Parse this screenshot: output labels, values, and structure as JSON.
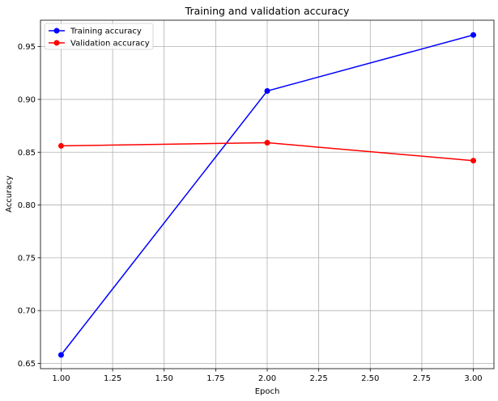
{
  "chart_data": {
    "type": "line",
    "title": "Training and validation accuracy",
    "xlabel": "Epoch",
    "ylabel": "Accuracy",
    "xlim": [
      0.9,
      3.1
    ],
    "ylim": [
      0.645,
      0.975
    ],
    "grid": true,
    "legend_position": "top-left",
    "x": [
      1.0,
      2.0,
      3.0
    ],
    "xticks": [
      1.0,
      1.25,
      1.5,
      1.75,
      2.0,
      2.25,
      2.5,
      2.75,
      3.0
    ],
    "xtick_labels": [
      "1.00",
      "1.25",
      "1.50",
      "1.75",
      "2.00",
      "2.25",
      "2.50",
      "2.75",
      "3.00"
    ],
    "yticks": [
      0.65,
      0.7,
      0.75,
      0.8,
      0.85,
      0.9,
      0.95
    ],
    "ytick_labels": [
      "0.65",
      "0.70",
      "0.75",
      "0.80",
      "0.85",
      "0.90",
      "0.95"
    ],
    "series": [
      {
        "name": "Training accuracy",
        "color": "#0000ff",
        "values": [
          0.658,
          0.908,
          0.961
        ]
      },
      {
        "name": "Validation accuracy",
        "color": "#ff0000",
        "values": [
          0.856,
          0.859,
          0.842
        ]
      }
    ]
  }
}
